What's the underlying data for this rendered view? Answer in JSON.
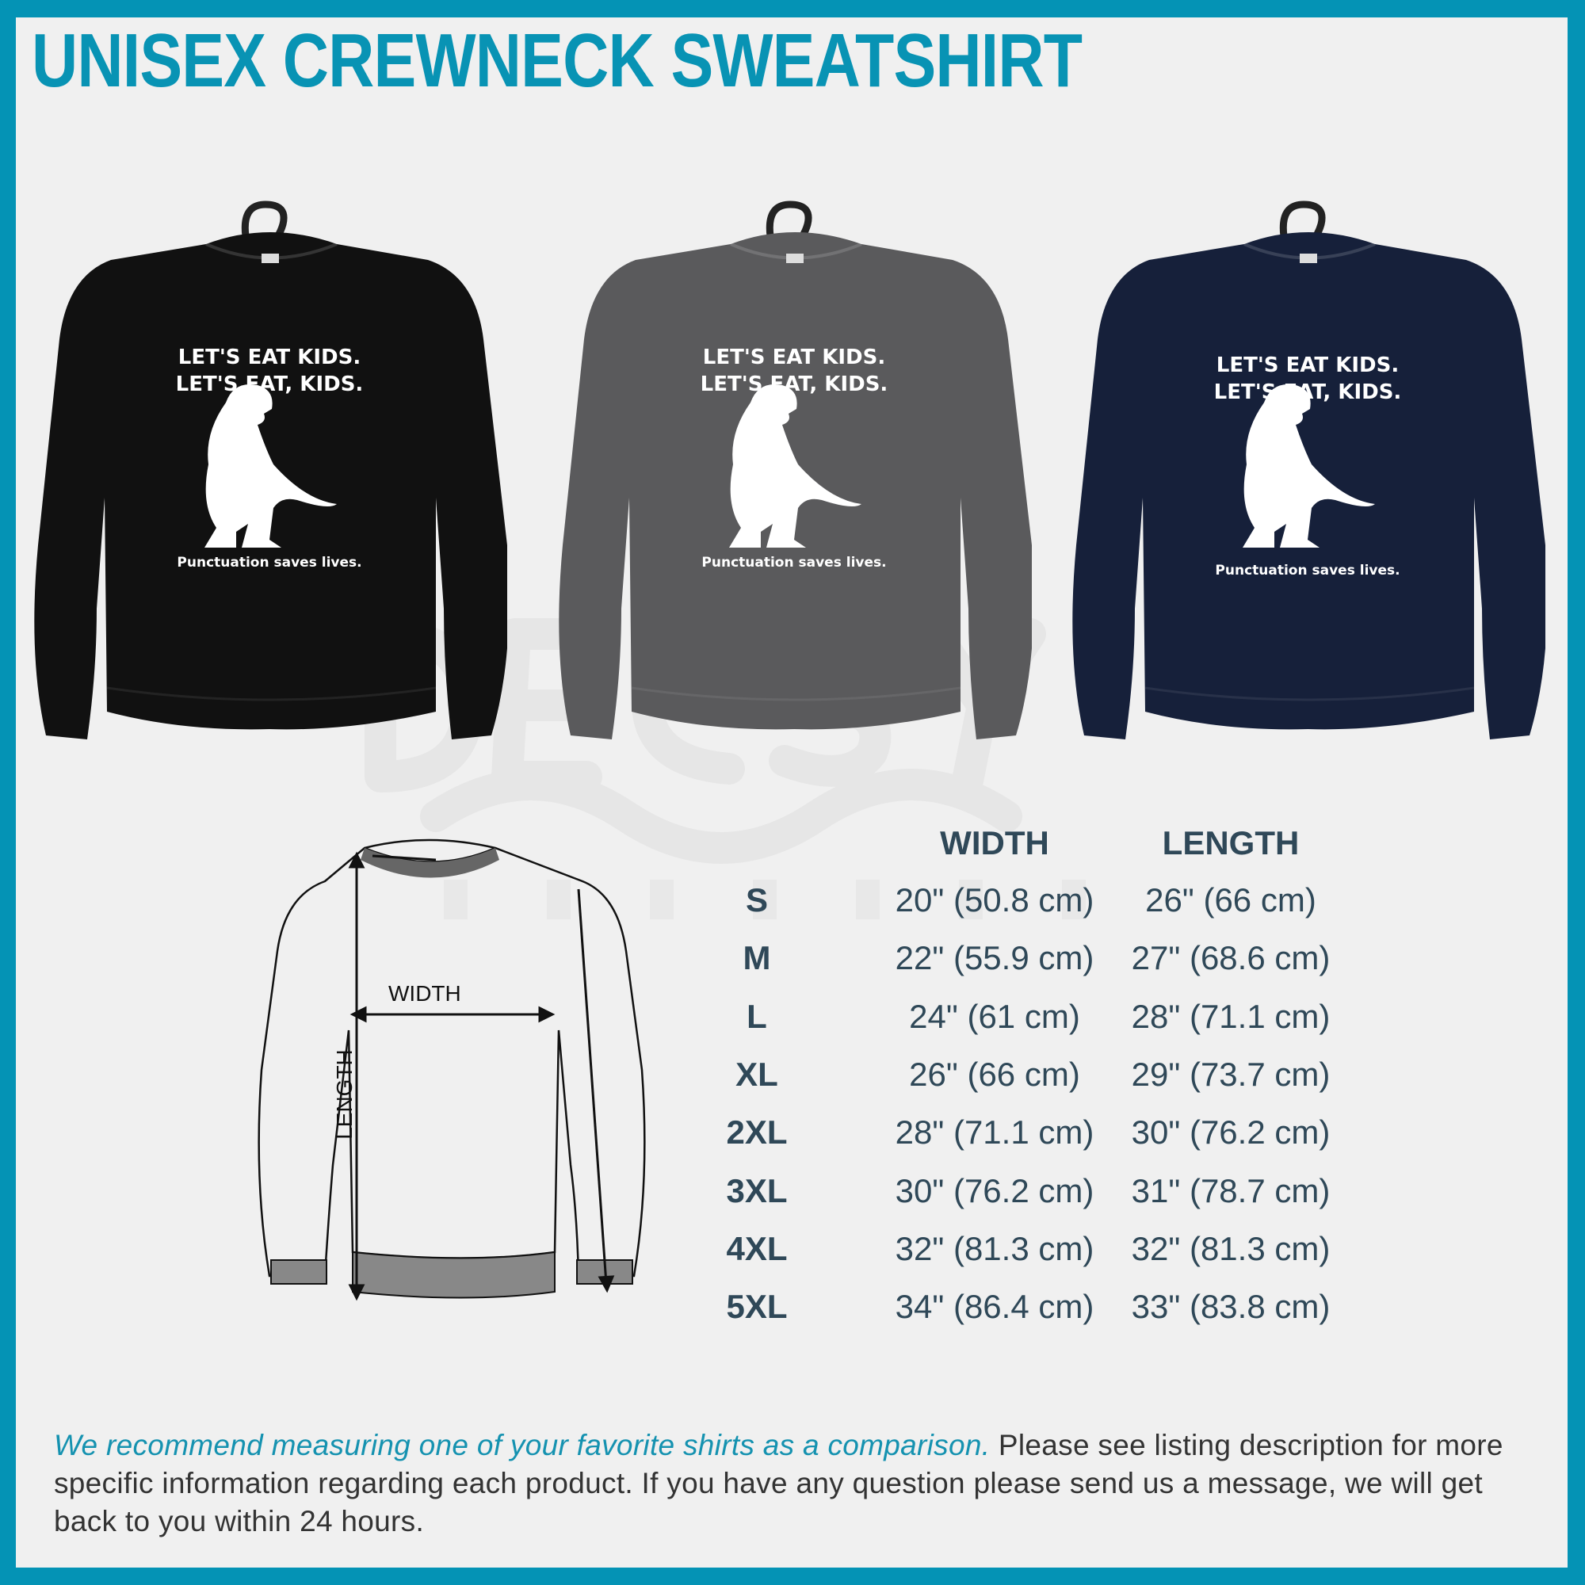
{
  "title": "UNISEX CREWNECK SWEATSHIRT",
  "colors": {
    "border": "#0493b5",
    "title": "#0893b4",
    "table_text": "#2f4858",
    "emphasis": "#1592b0"
  },
  "watermark": "DECSY DESIGNS",
  "shirts": [
    {
      "color": "#111111",
      "line1": "LET'S EAT KIDS.",
      "line2": "LET'S EAT, KIDS.",
      "caption": "Punctuation saves lives."
    },
    {
      "color": "#5a5a5c",
      "line1": "LET'S EAT KIDS.",
      "line2": "LET'S EAT, KIDS.",
      "caption": "Punctuation saves lives."
    },
    {
      "color": "#16203a",
      "line1": "LET'S EAT KIDS.",
      "line2": "LET'S EAT, KIDS.",
      "caption": "Punctuation saves lives."
    }
  ],
  "diagram": {
    "width_label": "WIDTH",
    "length_label": "LENGTH"
  },
  "size_table": {
    "headers": [
      "",
      "WIDTH",
      "LENGTH"
    ],
    "rows": [
      {
        "size": "S",
        "width": "20\" (50.8 cm)",
        "length": "26\" (66 cm)"
      },
      {
        "size": "M",
        "width": "22\" (55.9 cm)",
        "length": "27\" (68.6 cm)"
      },
      {
        "size": "L",
        "width": "24\" (61 cm)",
        "length": "28\" (71.1 cm)"
      },
      {
        "size": "XL",
        "width": "26\" (66 cm)",
        "length": "29\" (73.7 cm)"
      },
      {
        "size": "2XL",
        "width": "28\" (71.1 cm)",
        "length": "30\" (76.2 cm)"
      },
      {
        "size": "3XL",
        "width": "30\" (76.2 cm)",
        "length": "31\" (78.7 cm)"
      },
      {
        "size": "4XL",
        "width": "32\" (81.3 cm)",
        "length": "32\" (81.3 cm)"
      },
      {
        "size": "5XL",
        "width": "34\" (86.4 cm)",
        "length": "33\" (83.8 cm)"
      }
    ]
  },
  "footer": {
    "emphasis": "We recommend measuring one of your favorite shirts as a comparison.",
    "body": " Please see listing description for more specific information regarding each product. If you have any question please send us a message, we will get back to you within 24 hours."
  }
}
